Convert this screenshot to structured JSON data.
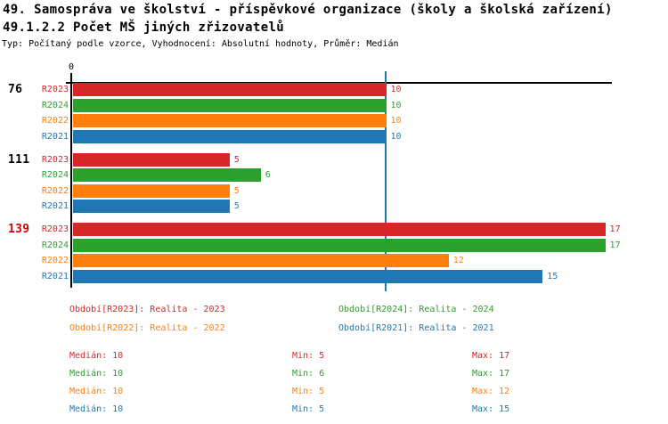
{
  "header": {
    "title": "49. Samospráva ve školství - příspěvkové organizace (školy a školská zařízení)",
    "subtitle": "49.1.2.2 Počet MŠ jiných zřizovatelů",
    "meta": "Typ: Počítaný podle vzorce, Vyhodnocení: Absolutní hodnoty, Průměr: Medián"
  },
  "colors": {
    "R2023": "#d62728",
    "R2024": "#2ca02c",
    "R2022": "#ff7f0e",
    "R2021": "#1f77b4",
    "axis": "#000000",
    "median_line": "#1f77b4",
    "highlight_group": "#d60000",
    "group_label": "#000000"
  },
  "chart_data": {
    "type": "bar",
    "orientation": "horizontal",
    "axis_origin_label": "0",
    "xlim": [
      0,
      17.2
    ],
    "median_line_value": 10,
    "series_order": [
      "R2023",
      "R2024",
      "R2022",
      "R2021"
    ],
    "groups": [
      {
        "label": "76",
        "highlighted": false,
        "values": {
          "R2023": 10,
          "R2024": 10,
          "R2022": 10,
          "R2021": 10
        }
      },
      {
        "label": "111",
        "highlighted": false,
        "values": {
          "R2023": 5,
          "R2024": 6,
          "R2022": 5,
          "R2021": 5
        }
      },
      {
        "label": "139",
        "highlighted": true,
        "values": {
          "R2023": 17,
          "R2024": 17,
          "R2022": 12,
          "R2021": 15
        }
      }
    ]
  },
  "legend": [
    {
      "series": "R2023",
      "label": "Období[R2023]: Realita - 2023"
    },
    {
      "series": "R2024",
      "label": "Období[R2024]: Realita - 2024"
    },
    {
      "series": "R2022",
      "label": "Období[R2022]: Realita - 2022"
    },
    {
      "series": "R2021",
      "label": "Období[R2021]: Realita - 2021"
    }
  ],
  "stat_labels": {
    "median": "Medián",
    "min": "Min",
    "max": "Max"
  },
  "stats": [
    {
      "series": "R2023",
      "median": 10,
      "min": 5,
      "max": 17
    },
    {
      "series": "R2024",
      "median": 10,
      "min": 6,
      "max": 17
    },
    {
      "series": "R2022",
      "median": 10,
      "min": 5,
      "max": 12
    },
    {
      "series": "R2021",
      "median": 10,
      "min": 5,
      "max": 15
    }
  ]
}
